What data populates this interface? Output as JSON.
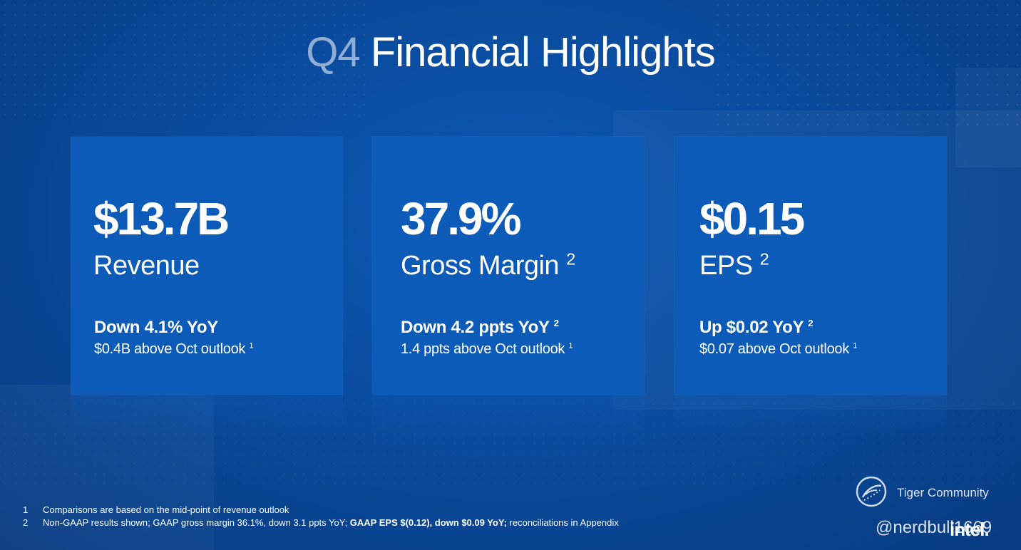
{
  "slide": {
    "title_prefix": "Q4",
    "title_rest": " Financial Highlights"
  },
  "cards": [
    {
      "metric": "$13.7B",
      "label": "Revenue",
      "label_sup": "",
      "change": "Down 4.1% YoY",
      "change_sup": "",
      "outlook": "$0.4B above Oct outlook",
      "outlook_sup": "1"
    },
    {
      "metric": "37.9%",
      "label": "Gross Margin",
      "label_sup": "2",
      "change": "Down 4.2 ppts YoY",
      "change_sup": "2",
      "outlook": "1.4 ppts above Oct outlook",
      "outlook_sup": "1"
    },
    {
      "metric": "$0.15",
      "label": "EPS",
      "label_sup": "2",
      "change": "Up $0.02 YoY",
      "change_sup": "2",
      "outlook": "$0.07 above Oct outlook",
      "outlook_sup": "1"
    }
  ],
  "footnotes": [
    {
      "num": "1",
      "text": "Comparisons are based on the mid-point of revenue outlook"
    },
    {
      "num": "2",
      "text_a": "Non-GAAP results shown; GAAP gross margin 36.1%, down 3.1 ppts YoY; ",
      "text_bold": "GAAP EPS $(0.12), down $0.09 YoY;",
      "text_b": " reconciliations in Appendix"
    }
  ],
  "watermark": {
    "brand": "Tiger Community",
    "icon": "tiger-community-logo",
    "handle": "@nerdbull1669"
  },
  "logo": {
    "text": "intel."
  },
  "colors": {
    "background": "#0a4b9e",
    "card": "#0c5bb8",
    "text": "#ffffff"
  }
}
